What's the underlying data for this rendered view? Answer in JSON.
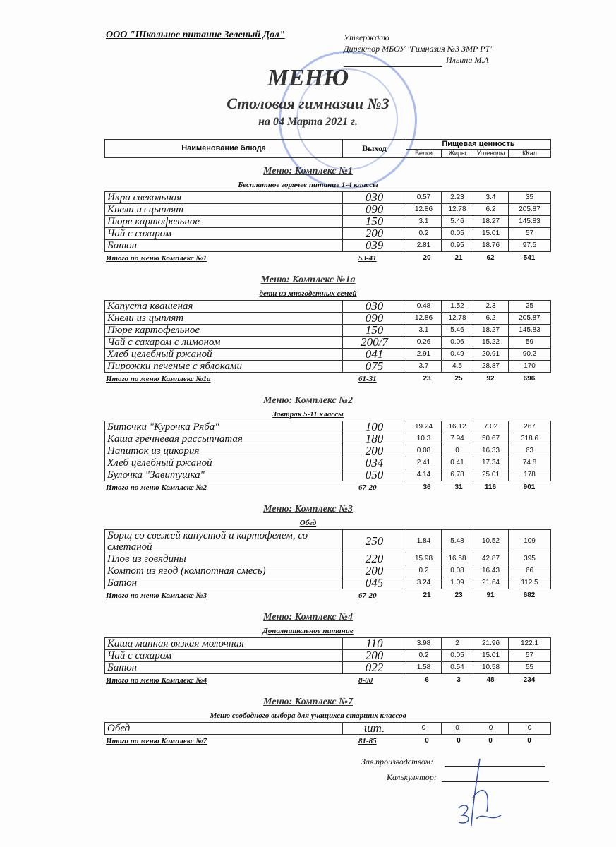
{
  "header": {
    "organization": "ООО \"Школьное питание Зеленый Дол\"",
    "approve": "Утверждаю",
    "director": "Директор МБОУ \"Гимназия №3 ЗМР РТ\"",
    "director_name": "Ильина М.А",
    "title": "МЕНЮ",
    "subtitle": "Столовая гимназии №3",
    "date": "на 04 Марта 2021 г."
  },
  "columns": {
    "name": "Наименование блюда",
    "output": "Выход",
    "nutrition": "Пищевая ценность",
    "proteins": "Белки",
    "fats": "Жиры",
    "carbs": "Углеводы",
    "kcal": "ККал"
  },
  "sections": [
    {
      "title": "Меню: Комплекс №1",
      "subtitle": "Бесплатное горячее питание  1-4 классы",
      "rows": [
        [
          "Икра свекольная",
          "030",
          "0.57",
          "2.23",
          "3.4",
          "35"
        ],
        [
          "Кнели из цыплят",
          "090",
          "12.86",
          "12.78",
          "6.2",
          "205.87"
        ],
        [
          "Пюре картофельное",
          "150",
          "3.1",
          "5.46",
          "18.27",
          "145.83"
        ],
        [
          "Чай с сахаром",
          "200",
          "0.2",
          "0.05",
          "15.01",
          "57"
        ],
        [
          "Батон",
          "039",
          "2.81",
          "0.95",
          "18.76",
          "97.5"
        ]
      ],
      "total": [
        "Итого по меню Комплекс №1",
        "53-41",
        "20",
        "21",
        "62",
        "541"
      ]
    },
    {
      "title": "Меню: Комплекс №1а",
      "subtitle": "дети из многодетных семей",
      "rows": [
        [
          "Капуста квашеная",
          "030",
          "0.48",
          "1.52",
          "2.3",
          "25"
        ],
        [
          "Кнели из цыплят",
          "090",
          "12.86",
          "12.78",
          "6.2",
          "205.87"
        ],
        [
          "Пюре картофельное",
          "150",
          "3.1",
          "5.46",
          "18.27",
          "145.83"
        ],
        [
          "Чай с сахаром с лимоном",
          "200/7",
          "0.26",
          "0.06",
          "15.22",
          "59"
        ],
        [
          "Хлеб  целебный ржаной",
          "041",
          "2.91",
          "0.49",
          "20.91",
          "90.2"
        ],
        [
          "Пирожки печеные с яблоками",
          "075",
          "3.7",
          "4.5",
          "28.87",
          "170"
        ]
      ],
      "total": [
        "Итого по меню Комплекс №1а",
        "61-31",
        "23",
        "25",
        "92",
        "696"
      ]
    },
    {
      "title": "Меню: Комплекс №2",
      "subtitle": "Завтрак 5-11 классы",
      "rows": [
        [
          "Биточки \"Курочка Ряба\"",
          "100",
          "19.24",
          "16.12",
          "7.02",
          "267"
        ],
        [
          "Каша гречневая рассыпчатая",
          "180",
          "10.3",
          "7.94",
          "50.67",
          "318.6"
        ],
        [
          "Напиток из цикория",
          "200",
          "0.08",
          "0",
          "16.33",
          "63"
        ],
        [
          "Хлеб  целебный ржаной",
          "034",
          "2.41",
          "0.41",
          "17.34",
          "74.8"
        ],
        [
          "Булочка \"Завитушка\"",
          "050",
          "4.14",
          "6.78",
          "25.01",
          "178"
        ]
      ],
      "total": [
        "Итого по меню Комплекс №2",
        "67-20",
        "36",
        "31",
        "116",
        "901"
      ]
    },
    {
      "title": "Меню: Комплекс №3",
      "subtitle": "Обед",
      "rows": [
        [
          "Борщ со свежей капустой и картофелем, со сметаной",
          "250",
          "1.84",
          "5.48",
          "10.52",
          "109"
        ],
        [
          "Плов из говядины",
          "220",
          "15.98",
          "16.58",
          "42.87",
          "395"
        ],
        [
          "Компот из  ягод (компотная смесь)",
          "200",
          "0.2",
          "0.08",
          "16.43",
          "66"
        ],
        [
          "Батон",
          "045",
          "3.24",
          "1.09",
          "21.64",
          "112.5"
        ]
      ],
      "total": [
        "Итого по меню Комплекс №3",
        "67-20",
        "21",
        "23",
        "91",
        "682"
      ]
    },
    {
      "title": "Меню: Комплекс №4",
      "subtitle": "Дополнительное питание",
      "rows": [
        [
          "Каша манная вязкая молочная",
          "110",
          "3.98",
          "2",
          "21.96",
          "122.1"
        ],
        [
          "Чай с сахаром",
          "200",
          "0.2",
          "0.05",
          "15.01",
          "57"
        ],
        [
          "Батон",
          "022",
          "1.58",
          "0.54",
          "10.58",
          "55"
        ]
      ],
      "total": [
        "Итого по меню Комплекс №4",
        "8-00",
        "6",
        "3",
        "48",
        "234"
      ]
    },
    {
      "title": "Меню: Комплекс №7",
      "subtitle": "Меню свободного выбора для учащихся старших классов",
      "rows": [
        [
          "Обед",
          "шт.",
          "0",
          "0",
          "0",
          "0"
        ]
      ],
      "total": [
        "Итого по меню Комплекс №7",
        "81-85",
        "0",
        "0",
        "0",
        "0"
      ]
    }
  ],
  "footer": {
    "production": "Зав.производством:",
    "calculator": "Калькулятор:"
  },
  "colors": {
    "stamp": "#466edc",
    "text": "#111111"
  }
}
